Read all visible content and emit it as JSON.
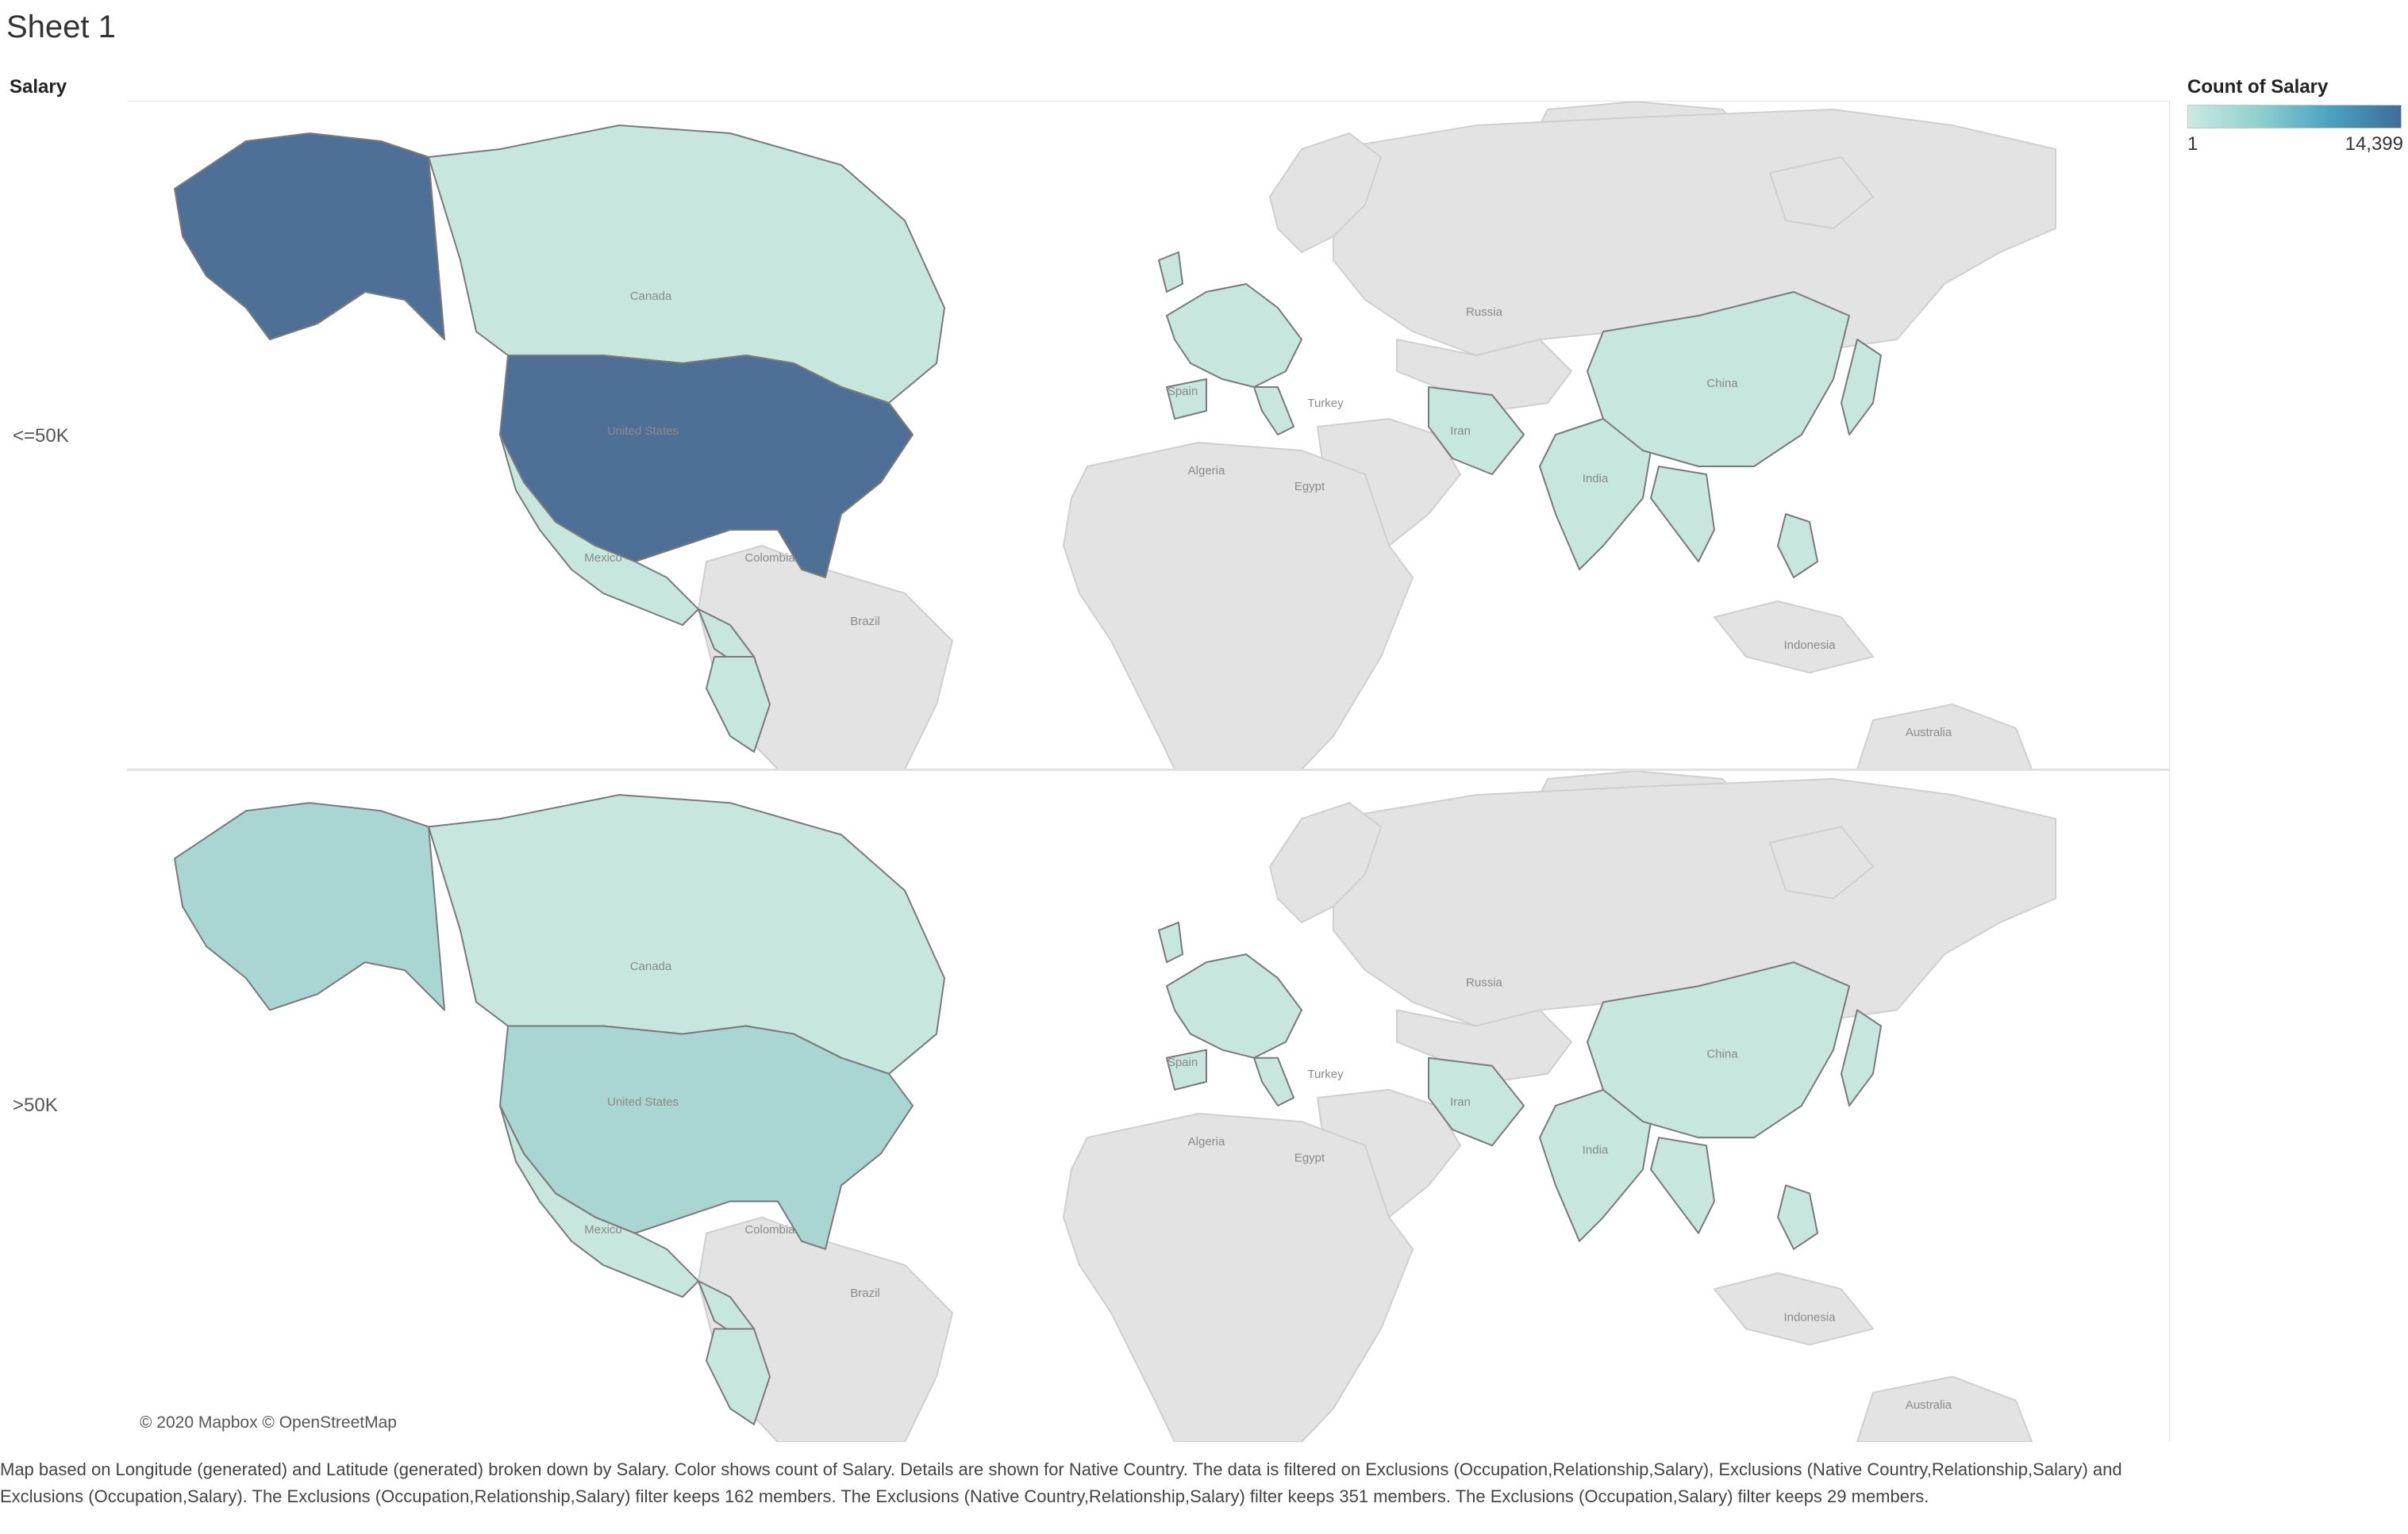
{
  "sheet": {
    "title": "Sheet 1"
  },
  "dimension_header": "Salary",
  "rows": [
    {
      "label": "<=50K"
    },
    {
      "label": ">50K"
    }
  ],
  "legend": {
    "title": "Count of Salary",
    "min": "1",
    "max": "14,399"
  },
  "map": {
    "attribution": "© 2020 Mapbox © OpenStreetMap",
    "labels": {
      "russia": "Russia",
      "canada": "Canada",
      "united_states": "United States",
      "mexico": "Mexico",
      "spain": "Spain",
      "turkey": "Turkey",
      "iran": "Iran",
      "algeria": "Algeria",
      "egypt": "Egypt",
      "china": "China",
      "india": "India",
      "colombia": "Colombia",
      "brazil": "Brazil",
      "indonesia": "Indonesia",
      "australia": "Australia"
    },
    "colors": {
      "high": "#4e7096",
      "low": "#c6e6de",
      "mid_low": "#a9d6d3",
      "land_grey": "#e3e3e3",
      "ocean": "#ffffff",
      "border": "#7a7a7a"
    }
  },
  "caption": "Map based on Longitude (generated) and Latitude (generated) broken down by Salary.  Color shows count of Salary.  Details are shown for Native Country. The data is filtered on Exclusions (Occupation,Relationship,Salary), Exclusions (Native Country,Relationship,Salary) and Exclusions (Occupation,Salary). The Exclusions (Occupation,Relationship,Salary) filter keeps 162 members. The Exclusions (Native Country,Relationship,Salary) filter keeps 351 members. The Exclusions (Occupation,Salary) filter keeps 29 members."
}
